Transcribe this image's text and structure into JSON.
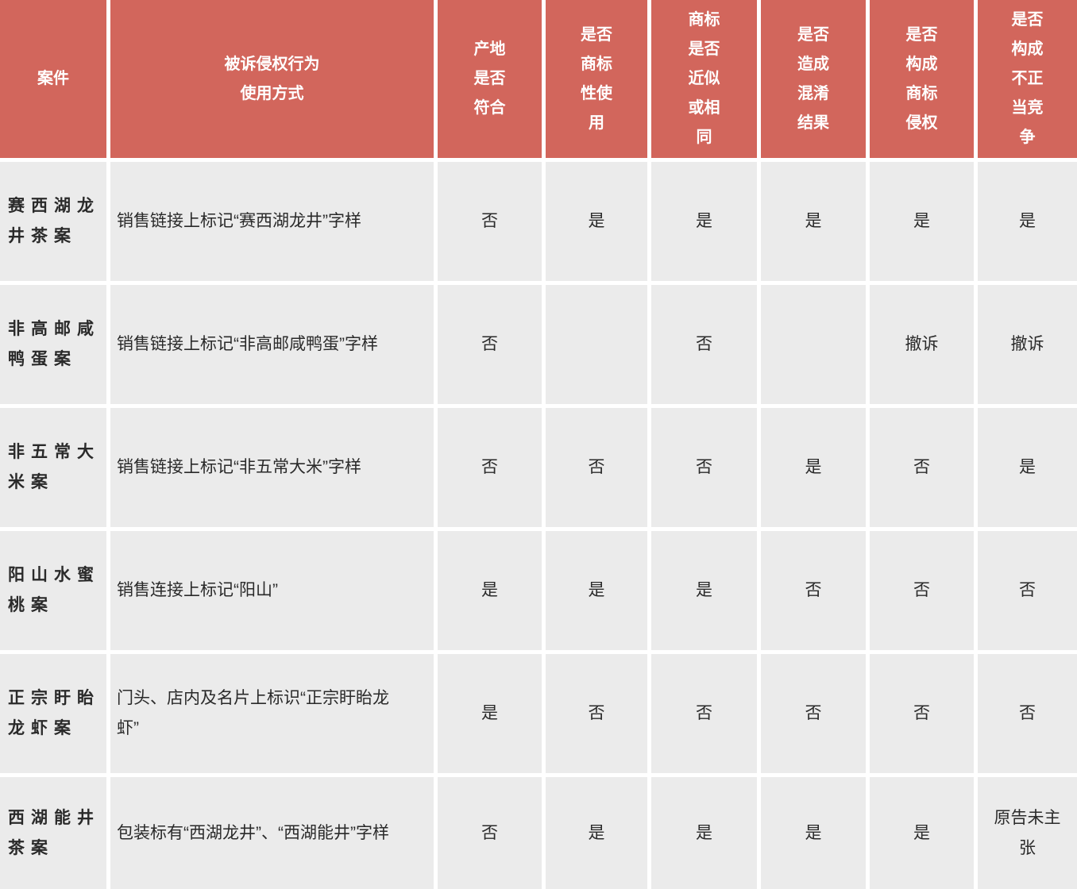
{
  "chart_data": {
    "type": "table",
    "columns": [
      "案件",
      "被诉侵权行为\n使用方式",
      "产地是否符合",
      "是否商标性使用",
      "商标是否近似或相同",
      "是否造成混淆结果",
      "是否构成商标侵权",
      "是否构成不正当竞争"
    ],
    "rows": [
      [
        "赛西湖龙井茶案",
        "销售链接上标记“赛西湖龙井”字样",
        "否",
        "是",
        "是",
        "是",
        "是",
        "是"
      ],
      [
        "非高邮咸鸭蛋案",
        "销售链接上标记“非高邮咸鸭蛋”字样",
        "否",
        "",
        "否",
        "",
        "撤诉",
        "撤诉"
      ],
      [
        "非五常大米案",
        "销售链接上标记“非五常大米”字样",
        "否",
        "否",
        "否",
        "是",
        "否",
        "是"
      ],
      [
        "阳山水蜜桃案",
        "销售连接上标记“阳山”",
        "是",
        "是",
        "是",
        "否",
        "否",
        "否"
      ],
      [
        "正宗盱眙龙虾案",
        "门头、店内及名片上标识“正宗盱眙龙虾”",
        "是",
        "否",
        "否",
        "否",
        "否",
        "否"
      ],
      [
        "西湖能井茶案",
        "包装标有“西湖龙井”、“西湖能井”字样",
        "否",
        "是",
        "是",
        "是",
        "是",
        "原告未主张"
      ]
    ],
    "colors": {
      "header_bg": "#d2665c",
      "header_text": "#ffffff",
      "row_bg": "#ebebeb",
      "body_text": "#2a2a2a",
      "gap": "#ffffff"
    },
    "layout": {
      "grid": "off",
      "header_position": "top"
    }
  }
}
